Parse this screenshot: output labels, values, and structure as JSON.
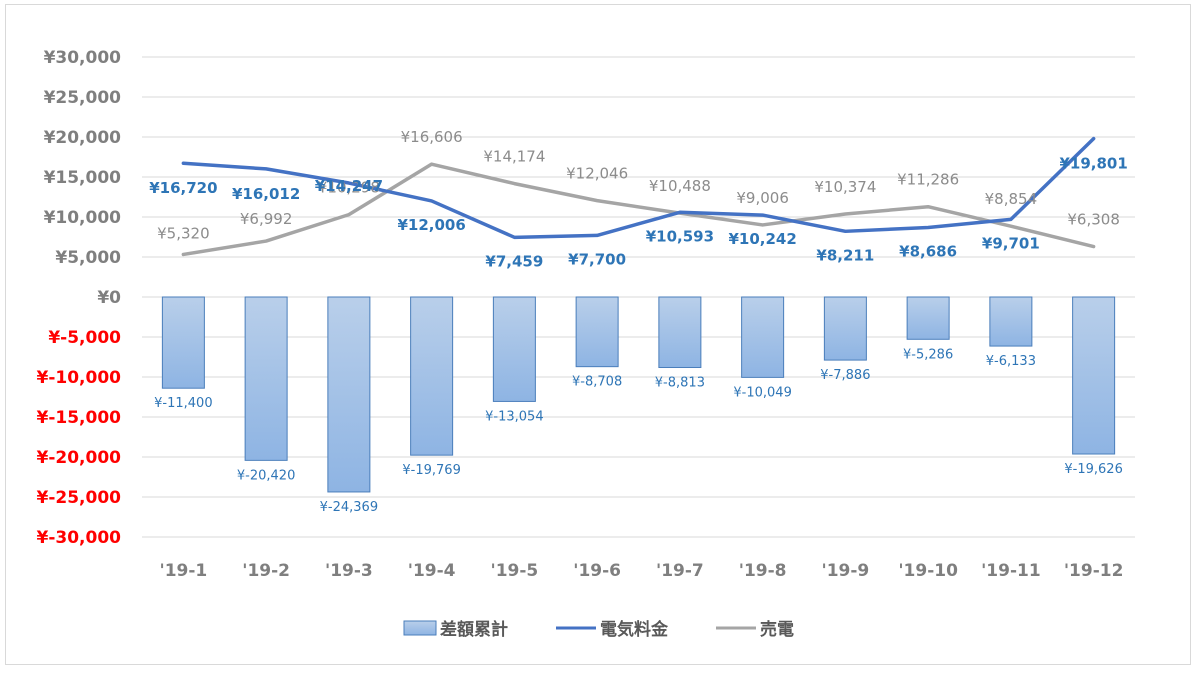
{
  "chart_data": {
    "type": "bar",
    "categories": [
      "'19-1",
      "'19-2",
      "'19-3",
      "'19-4",
      "'19-5",
      "'19-6",
      "'19-7",
      "'19-8",
      "'19-9",
      "'19-10",
      "'19-11",
      "'19-12"
    ],
    "ylim": [
      -30000,
      30000
    ],
    "y_ticks": [
      30000,
      25000,
      20000,
      15000,
      10000,
      5000,
      0,
      -5000,
      -10000,
      -15000,
      -20000,
      -25000,
      -30000
    ],
    "y_tick_labels": [
      "¥30,000",
      "¥25,000",
      "¥20,000",
      "¥15,000",
      "¥10,000",
      "¥5,000",
      "¥0",
      "¥-5,000",
      "¥-10,000",
      "¥-15,000",
      "¥-20,000",
      "¥-25,000",
      "¥-30,000"
    ],
    "grid": true,
    "legend_position": "bottom",
    "series": [
      {
        "name": "差額累計",
        "type": "bar",
        "color": "#8eb4e3",
        "values": [
          -11400,
          -20420,
          -24369,
          -19769,
          -13054,
          -8708,
          -8813,
          -10049,
          -7886,
          -5286,
          -6133,
          -19626
        ],
        "labels": [
          "¥-11,400",
          "¥-20,420",
          "¥-24,369",
          "¥-19,769",
          "¥-13,054",
          "¥-8,708",
          "¥-8,813",
          "¥-10,049",
          "¥-7,886",
          "¥-5,286",
          "¥-6,133",
          "¥-19,626"
        ]
      },
      {
        "name": "電気料金",
        "type": "line",
        "color": "#4472c4",
        "values": [
          16720,
          16012,
          14247,
          12006,
          7459,
          7700,
          10593,
          10242,
          8211,
          8686,
          9701,
          19801
        ],
        "labels": [
          "¥16,720",
          "¥16,012",
          "¥14,247",
          "¥12,006",
          "¥7,459",
          "¥7,700",
          "¥10,593",
          "¥10,242",
          "¥8,211",
          "¥8,686",
          "¥9,701",
          "¥19,801"
        ]
      },
      {
        "name": "売電",
        "type": "line",
        "color": "#a5a5a5",
        "values": [
          5320,
          6992,
          10298,
          16606,
          14174,
          12046,
          10488,
          9006,
          10374,
          11286,
          8854,
          6308
        ],
        "labels": [
          "¥5,320",
          "¥6,992",
          "¥10,298",
          "¥16,606",
          "¥14,174",
          "¥12,046",
          "¥10,488",
          "¥9,006",
          "¥10,374",
          "¥11,286",
          "¥8,854",
          "¥6,308"
        ]
      }
    ],
    "colors": {
      "positive_tick": "#7f7f7f",
      "negative_tick": "#ff0000",
      "grid": "#d9d9d9",
      "bar_stroke": "#4a7ebb"
    }
  }
}
